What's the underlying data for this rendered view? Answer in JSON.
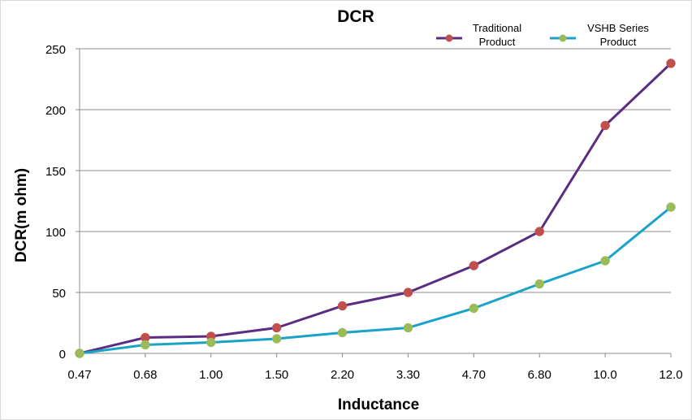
{
  "chart_data": {
    "type": "line",
    "title": "DCR",
    "xlabel": "Inductance",
    "ylabel": "DCR(m ohm)",
    "categories": [
      "0.47",
      "0.68",
      "1.00",
      "1.50",
      "2.20",
      "3.30",
      "4.70",
      "6.80",
      "10.0",
      "12.0"
    ],
    "ylim": [
      0,
      250
    ],
    "yticks": [
      "0",
      "50",
      "100",
      "150",
      "200",
      "250"
    ],
    "grid": true,
    "legend_position": "top-right",
    "series": [
      {
        "name": "Traditional Product",
        "legend_lines": [
          "Traditional",
          "Product"
        ],
        "values": [
          0,
          13,
          14,
          21,
          39,
          50,
          72,
          100,
          187,
          238
        ],
        "line_color": "#5b2c82",
        "marker_color": "#c0504d"
      },
      {
        "name": "VSHB Series Product",
        "legend_lines": [
          "VSHB Series",
          "Product"
        ],
        "values": [
          0,
          7,
          9,
          12,
          17,
          21,
          37,
          57,
          76,
          120
        ],
        "line_color": "#1aa3c9",
        "marker_color": "#9bbb59"
      }
    ]
  }
}
